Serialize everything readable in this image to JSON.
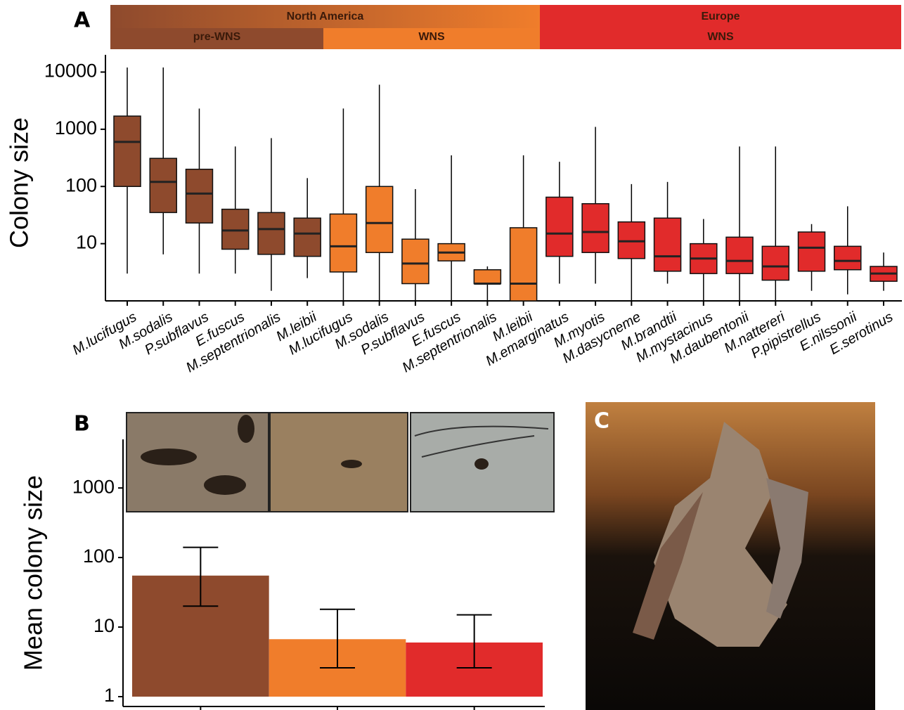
{
  "chart_data": [
    {
      "type": "box",
      "panel_label": "A",
      "ylabel": "Colony size",
      "log_scale": true,
      "ylim": [
        1,
        20000
      ],
      "yticks": [
        10,
        100,
        1000,
        10000
      ],
      "header": {
        "top": [
          {
            "label": "North America",
            "color": "#f07d2b"
          },
          {
            "label": "Europe",
            "color": "#e12b2b"
          }
        ],
        "bottom": [
          {
            "label": "pre-WNS",
            "color": "#8e4a2d"
          },
          {
            "label": "WNS",
            "color": "#f07d2b"
          },
          {
            "label": "WNS",
            "color": "#e12b2b"
          }
        ]
      },
      "categories": [
        "M.lucifugus",
        "M.sodalis",
        "P.subflavus",
        "E.fuscus",
        "M.septentrionalis",
        "M.leibii",
        "M.lucifugus",
        "M.sodalis",
        "P.subflavus",
        "E.fuscus",
        "M.septentrionalis",
        "M.leibii",
        "M.emarginatus",
        "M.myotis",
        "M.dasycneme",
        "M.brandtii",
        "M.mystacinus",
        "M.daubentonii",
        "M.nattereri",
        "P.pipistrellus",
        "E.nilssonii",
        "E.serotinus"
      ],
      "colors": [
        "#8e4a2d",
        "#8e4a2d",
        "#8e4a2d",
        "#8e4a2d",
        "#8e4a2d",
        "#8e4a2d",
        "#f07d2b",
        "#f07d2b",
        "#f07d2b",
        "#f07d2b",
        "#f07d2b",
        "#f07d2b",
        "#e12b2b",
        "#e12b2b",
        "#e12b2b",
        "#e12b2b",
        "#e12b2b",
        "#e12b2b",
        "#e12b2b",
        "#e12b2b",
        "#e12b2b",
        "#e12b2b"
      ],
      "whislo": [
        3,
        6.5,
        3,
        3,
        1.5,
        2.5,
        1,
        1,
        1,
        1,
        1,
        1,
        2,
        2,
        1,
        2,
        1,
        1,
        1,
        1.5,
        1.3,
        1.5
      ],
      "q1": [
        100,
        35,
        23,
        8,
        6.5,
        6,
        3.2,
        7,
        2,
        5,
        2,
        1,
        6,
        7,
        5.5,
        3.3,
        3,
        3,
        2.3,
        3.3,
        3.5,
        2.2
      ],
      "median": [
        600,
        120,
        75,
        17,
        18,
        15,
        9,
        23,
        4.5,
        7,
        2,
        2,
        15,
        16,
        11,
        6,
        5.5,
        5,
        4,
        8.5,
        5,
        3
      ],
      "q3": [
        1700,
        310,
        200,
        40,
        35,
        28,
        33,
        100,
        12,
        10,
        3.5,
        19,
        65,
        50,
        24,
        28,
        10,
        13,
        9,
        16,
        9,
        4
      ],
      "whishi": [
        12000,
        12000,
        2300,
        500,
        700,
        140,
        2300,
        6000,
        90,
        350,
        4,
        350,
        270,
        1100,
        110,
        120,
        27,
        500,
        500,
        22,
        45,
        7
      ]
    },
    {
      "type": "bar",
      "panel_label": "B",
      "ylabel": "Mean colony size",
      "log_scale": true,
      "ylim": [
        1,
        5000
      ],
      "yticks": [
        1,
        10,
        100,
        1000
      ],
      "categories": [
        null,
        null,
        null
      ],
      "values": [
        55,
        6.7,
        6
      ],
      "colors": [
        "#8e4a2d",
        "#f07d2b",
        "#e12b2b"
      ],
      "err_low": [
        20,
        2.6,
        2.6
      ],
      "err_high": [
        140,
        18,
        15
      ]
    }
  ],
  "photo": {
    "label": "C"
  }
}
